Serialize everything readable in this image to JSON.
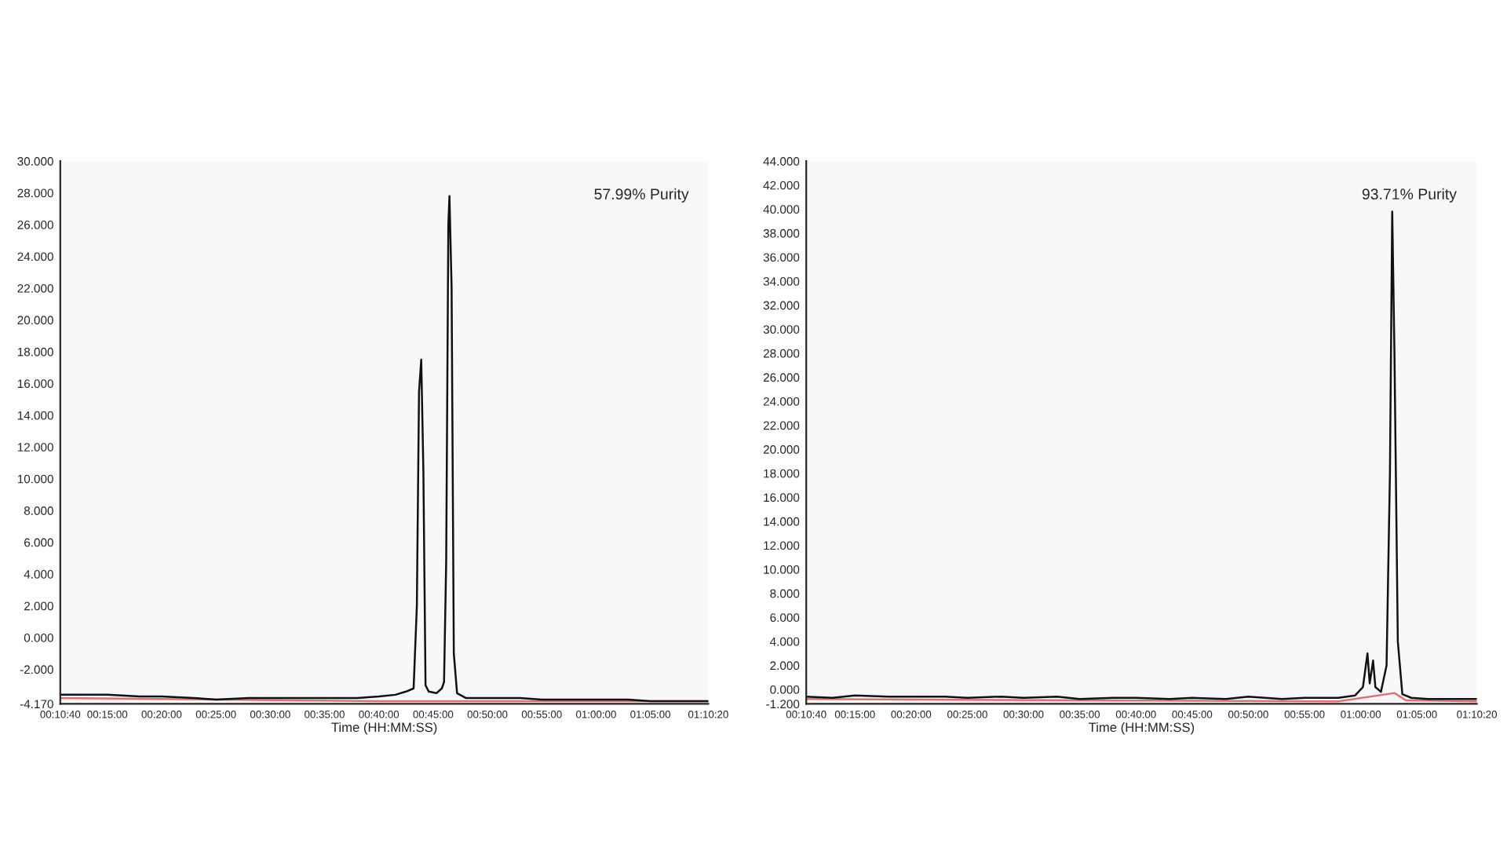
{
  "chart_data": [
    {
      "type": "line",
      "xlabel": "Time (HH:MM:SS)",
      "annotations": [
        "57.99% Purity"
      ],
      "grid": false,
      "legend": false,
      "marker": "none",
      "line_style": "solid",
      "xlim": [
        0.1778,
        1.1722
      ],
      "xticks": [
        {
          "value": 0.1778,
          "label": "00:10:40"
        },
        {
          "value": 0.25,
          "label": "00:15:00"
        },
        {
          "value": 0.3333,
          "label": "00:20:00"
        },
        {
          "value": 0.4167,
          "label": "00:25:00"
        },
        {
          "value": 0.5,
          "label": "00:30:00"
        },
        {
          "value": 0.5833,
          "label": "00:35:00"
        },
        {
          "value": 0.6667,
          "label": "00:40:00"
        },
        {
          "value": 0.75,
          "label": "00:45:00"
        },
        {
          "value": 0.8333,
          "label": "00:50:00"
        },
        {
          "value": 0.9167,
          "label": "00:55:00"
        },
        {
          "value": 1.0,
          "label": "01:00:00"
        },
        {
          "value": 1.0833,
          "label": "01:05:00"
        },
        {
          "value": 1.1722,
          "label": "01:10:20"
        }
      ],
      "ylim": [
        -4.17,
        30
      ],
      "yticks": [
        {
          "value": -4.17,
          "label": "-4.170"
        },
        {
          "value": -2,
          "label": "-2.000"
        },
        {
          "value": 0,
          "label": "0.000"
        },
        {
          "value": 2,
          "label": "2.000"
        },
        {
          "value": 4,
          "label": "4.000"
        },
        {
          "value": 6,
          "label": "6.000"
        },
        {
          "value": 8,
          "label": "8.000"
        },
        {
          "value": 10,
          "label": "10.000"
        },
        {
          "value": 12,
          "label": "12.000"
        },
        {
          "value": 14,
          "label": "14.000"
        },
        {
          "value": 16,
          "label": "16.000"
        },
        {
          "value": 18,
          "label": "18.000"
        },
        {
          "value": 20,
          "label": "20.000"
        },
        {
          "value": 22,
          "label": "22.000"
        },
        {
          "value": 24,
          "label": "24.000"
        },
        {
          "value": 26,
          "label": "26.000"
        },
        {
          "value": 28,
          "label": "28.000"
        },
        {
          "value": 30,
          "label": "30.000"
        }
      ],
      "series": [
        {
          "color": "#e07070",
          "x": [
            0.1778,
            0.6667,
            1.1722
          ],
          "values": [
            -3.8,
            -4.0,
            -4.0
          ]
        },
        {
          "color": "#111111",
          "x": [
            0.1778,
            0.2167,
            0.25,
            0.3,
            0.3333,
            0.3833,
            0.4167,
            0.4667,
            0.5,
            0.55,
            0.5833,
            0.6333,
            0.6667,
            0.6917,
            0.7083,
            0.72,
            0.725,
            0.7283,
            0.7317,
            0.735,
            0.7383,
            0.7433,
            0.755,
            0.7633,
            0.7667,
            0.77,
            0.7733,
            0.775,
            0.7783,
            0.7817,
            0.7867,
            0.8,
            0.8333,
            0.8833,
            0.9167,
            0.9667,
            1.0,
            1.05,
            1.0833,
            1.1333,
            1.1722
          ],
          "values": [
            -3.6,
            -3.6,
            -3.6,
            -3.7,
            -3.7,
            -3.8,
            -3.9,
            -3.8,
            -3.8,
            -3.8,
            -3.8,
            -3.8,
            -3.7,
            -3.6,
            -3.4,
            -3.2,
            2.0,
            15.5,
            17.5,
            10.5,
            -3.0,
            -3.4,
            -3.5,
            -3.2,
            -2.8,
            4.8,
            26,
            27.8,
            22,
            -1,
            -3.5,
            -3.8,
            -3.8,
            -3.8,
            -3.9,
            -3.9,
            -3.9,
            -3.9,
            -4.0,
            -4.0,
            -4.0
          ]
        }
      ]
    },
    {
      "type": "line",
      "xlabel": "Time (HH:MM:SS)",
      "annotations": [
        "93.71% Purity"
      ],
      "grid": false,
      "legend": false,
      "marker": "none",
      "line_style": "solid",
      "xlim": [
        0.1778,
        1.1722
      ],
      "xticks": [
        {
          "value": 0.1778,
          "label": "00:10:40"
        },
        {
          "value": 0.25,
          "label": "00:15:00"
        },
        {
          "value": 0.3333,
          "label": "00:20:00"
        },
        {
          "value": 0.4167,
          "label": "00:25:00"
        },
        {
          "value": 0.5,
          "label": "00:30:00"
        },
        {
          "value": 0.5833,
          "label": "00:35:00"
        },
        {
          "value": 0.6667,
          "label": "00:40:00"
        },
        {
          "value": 0.75,
          "label": "00:45:00"
        },
        {
          "value": 0.8333,
          "label": "00:50:00"
        },
        {
          "value": 0.9167,
          "label": "00:55:00"
        },
        {
          "value": 1.0,
          "label": "01:00:00"
        },
        {
          "value": 1.0833,
          "label": "01:05:00"
        },
        {
          "value": 1.1722,
          "label": "01:10:20"
        }
      ],
      "ylim": [
        -1.2,
        44
      ],
      "yticks": [
        {
          "value": -1.2,
          "label": "-1.200"
        },
        {
          "value": 0,
          "label": "0.000"
        },
        {
          "value": 2,
          "label": "2.000"
        },
        {
          "value": 4,
          "label": "4.000"
        },
        {
          "value": 6,
          "label": "6.000"
        },
        {
          "value": 8,
          "label": "8.000"
        },
        {
          "value": 10,
          "label": "10.000"
        },
        {
          "value": 12,
          "label": "12.000"
        },
        {
          "value": 14,
          "label": "14.000"
        },
        {
          "value": 16,
          "label": "16.000"
        },
        {
          "value": 18,
          "label": "18.000"
        },
        {
          "value": 20,
          "label": "20.000"
        },
        {
          "value": 22,
          "label": "22.000"
        },
        {
          "value": 24,
          "label": "24.000"
        },
        {
          "value": 26,
          "label": "26.000"
        },
        {
          "value": 28,
          "label": "28.000"
        },
        {
          "value": 30,
          "label": "30.000"
        },
        {
          "value": 32,
          "label": "32.000"
        },
        {
          "value": 34,
          "label": "34.000"
        },
        {
          "value": 36,
          "label": "36.000"
        },
        {
          "value": 38,
          "label": "38.000"
        },
        {
          "value": 40,
          "label": "40.000"
        },
        {
          "value": 42,
          "label": "42.000"
        },
        {
          "value": 44,
          "label": "44.000"
        }
      ],
      "series": [
        {
          "color": "#e07070",
          "x": [
            0.1778,
            0.9667,
            1.05,
            1.0667,
            1.1722
          ],
          "values": [
            -0.8,
            -1.0,
            -0.3,
            -0.9,
            -1.0
          ]
        },
        {
          "color": "#111111",
          "x": [
            0.1778,
            0.2167,
            0.25,
            0.3,
            0.3333,
            0.3833,
            0.4167,
            0.4667,
            0.5,
            0.55,
            0.5833,
            0.6333,
            0.6667,
            0.7167,
            0.75,
            0.8,
            0.8333,
            0.8833,
            0.9167,
            0.9667,
            0.9917,
            1.0033,
            1.01,
            1.0133,
            1.0183,
            1.0217,
            1.03,
            1.0383,
            1.0433,
            1.0467,
            1.05,
            1.055,
            1.0617,
            1.075,
            1.1,
            1.1333,
            1.1722
          ],
          "values": [
            -0.6,
            -0.7,
            -0.5,
            -0.6,
            -0.6,
            -0.6,
            -0.7,
            -0.6,
            -0.7,
            -0.6,
            -0.8,
            -0.7,
            -0.7,
            -0.8,
            -0.7,
            -0.8,
            -0.6,
            -0.8,
            -0.7,
            -0.7,
            -0.5,
            0.2,
            3.0,
            0.5,
            2.4,
            0.2,
            -0.2,
            2,
            18,
            39.8,
            28,
            4,
            -0.4,
            -0.7,
            -0.8,
            -0.8,
            -0.8
          ]
        }
      ]
    }
  ]
}
